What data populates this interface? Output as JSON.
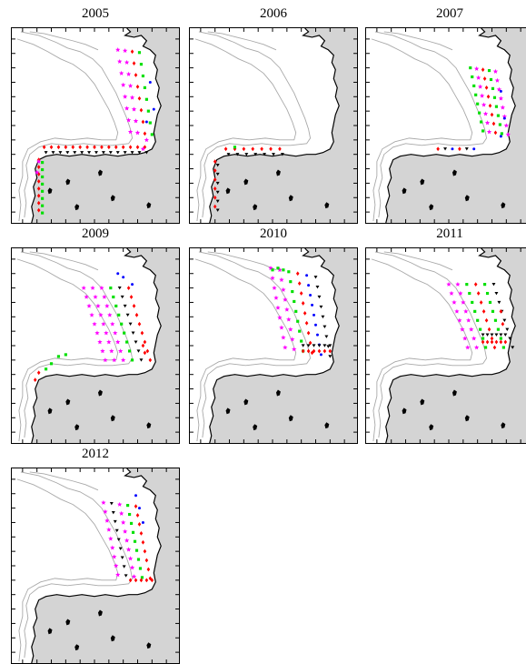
{
  "panels": [
    {
      "year": "2005"
    },
    {
      "year": "2006"
    },
    {
      "year": "2007"
    },
    {
      "year": "2009"
    },
    {
      "year": "2010"
    },
    {
      "year": "2011"
    },
    {
      "year": "2012"
    }
  ],
  "colors": {
    "land": "#d4d4d4",
    "coast": "#000000",
    "isobath": "#a8a8a8",
    "magenta_star": "#ff00ff",
    "green_square": "#00e000",
    "red_diamond": "#ff0000",
    "blue_circle": "#0000ff",
    "black_triangle": "#000000"
  },
  "markers": [
    "magenta-star",
    "green-square",
    "red-diamond",
    "blue-circle",
    "black-triangle"
  ]
}
